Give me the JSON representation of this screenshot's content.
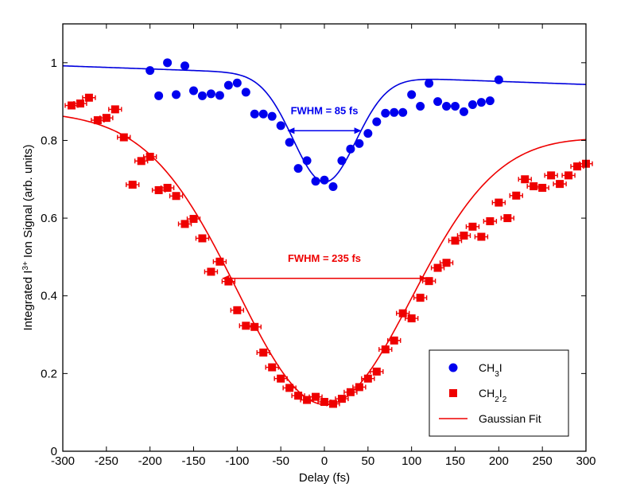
{
  "chart_data": {
    "type": "scatter",
    "xlabel": "Delay (fs)",
    "ylabel_parts": {
      "pre": "Integrated I",
      "sup": "3+",
      "post": " Ion Signal (arb. units)"
    },
    "xlim": [
      -300,
      300
    ],
    "ylim": [
      0,
      1.1
    ],
    "xticks": [
      -300,
      -250,
      -200,
      -150,
      -100,
      -50,
      0,
      50,
      100,
      150,
      200,
      250,
      300
    ],
    "yticks": [
      0,
      0.2,
      0.4,
      0.6,
      0.8,
      1
    ],
    "ytick_labels": [
      "0",
      "0.2",
      "0.4",
      "0.6",
      "0.8",
      "1"
    ],
    "grid": false,
    "legend_position": "lower-right",
    "series": [
      {
        "name": "CH3I",
        "label_parts": [
          [
            "CH",
            ""
          ],
          [
            "3",
            "sub"
          ],
          [
            "I",
            ""
          ]
        ],
        "marker": "circle",
        "color": "#0000ee",
        "x": [
          -200,
          -190,
          -180,
          -170,
          -160,
          -150,
          -140,
          -130,
          -120,
          -110,
          -100,
          -90,
          -80,
          -70,
          -60,
          -50,
          -40,
          -30,
          -20,
          -10,
          0,
          10,
          20,
          30,
          40,
          50,
          60,
          70,
          80,
          90,
          100,
          110,
          120,
          130,
          140,
          150,
          160,
          170,
          180,
          190,
          200
        ],
        "y": [
          0.98,
          0.915,
          1.0,
          0.918,
          0.992,
          0.928,
          0.915,
          0.92,
          0.916,
          0.942,
          0.948,
          0.924,
          0.868,
          0.868,
          0.862,
          0.838,
          0.795,
          0.728,
          0.748,
          0.695,
          0.698,
          0.681,
          0.748,
          0.778,
          0.792,
          0.818,
          0.848,
          0.87,
          0.872,
          0.872,
          0.918,
          0.888,
          0.947,
          0.9,
          0.888,
          0.888,
          0.874,
          0.892,
          0.898,
          0.902,
          0.956
        ]
      },
      {
        "name": "CH2I2",
        "label_parts": [
          [
            "CH",
            ""
          ],
          [
            "2",
            "sub"
          ],
          [
            "I",
            ""
          ],
          [
            "2",
            "sub"
          ]
        ],
        "marker": "square",
        "color": "#ee0000",
        "x": [
          -290,
          -280,
          -270,
          -260,
          -250,
          -240,
          -230,
          -220,
          -210,
          -200,
          -190,
          -180,
          -170,
          -160,
          -150,
          -140,
          -130,
          -120,
          -110,
          -100,
          -90,
          -80,
          -70,
          -60,
          -50,
          -40,
          -30,
          -20,
          -10,
          0,
          10,
          20,
          30,
          40,
          50,
          60,
          70,
          80,
          90,
          100,
          110,
          120,
          130,
          140,
          150,
          160,
          170,
          180,
          190,
          200,
          210,
          220,
          230,
          240,
          250,
          260,
          270,
          280,
          290,
          300
        ],
        "y": [
          0.89,
          0.895,
          0.91,
          0.852,
          0.858,
          0.88,
          0.808,
          0.686,
          0.747,
          0.758,
          0.672,
          0.678,
          0.657,
          0.585,
          0.598,
          0.548,
          0.462,
          0.488,
          0.437,
          0.363,
          0.323,
          0.32,
          0.254,
          0.216,
          0.187,
          0.163,
          0.143,
          0.132,
          0.14,
          0.127,
          0.122,
          0.135,
          0.152,
          0.165,
          0.187,
          0.205,
          0.262,
          0.285,
          0.355,
          0.342,
          0.395,
          0.438,
          0.472,
          0.485,
          0.542,
          0.555,
          0.578,
          0.552,
          0.592,
          0.64,
          0.6,
          0.658,
          0.7,
          0.682,
          0.678,
          0.71,
          0.688,
          0.71,
          0.733,
          0.74
        ]
      }
    ],
    "fits": [
      {
        "name": "CH3I fit",
        "color": "#0000dd",
        "baseline_a": 0.968,
        "baseline_b": -8e-05,
        "amplitude": 0.275,
        "center": 0,
        "fwhm": 85,
        "x_range": [
          -300,
          300
        ]
      },
      {
        "name": "CH2I2 fit",
        "color": "#ee0000",
        "baseline_a": 0.84,
        "baseline_b": -0.0001,
        "amplitude": 0.72,
        "center": 0,
        "fwhm": 235,
        "x_range": [
          -300,
          300
        ]
      }
    ],
    "annotations": [
      {
        "text": "FWHM = 85 fs",
        "color": "#0000ee",
        "arrow_x": [
          -42.5,
          42.5
        ],
        "arrow_y": 0.825,
        "text_x": 0,
        "text_y": 0.868
      },
      {
        "text": "FWHM = 235 fs",
        "color": "#ee0000",
        "arrow_x": [
          -117.5,
          117.5
        ],
        "arrow_y": 0.445,
        "text_x": 0,
        "text_y": 0.488
      }
    ],
    "legend": [
      {
        "label_parts": [
          [
            "CH",
            ""
          ],
          [
            "3",
            "sub"
          ],
          [
            "I",
            ""
          ]
        ],
        "kind": "circle",
        "color": "#0000ee"
      },
      {
        "label_parts": [
          [
            "CH",
            ""
          ],
          [
            "2",
            "sub"
          ],
          [
            "I",
            ""
          ],
          [
            "2",
            "sub"
          ]
        ],
        "kind": "square",
        "color": "#ee0000"
      },
      {
        "label_parts": [
          [
            "Gaussian Fit",
            ""
          ]
        ],
        "kind": "line",
        "color": "#ee0000"
      }
    ]
  }
}
